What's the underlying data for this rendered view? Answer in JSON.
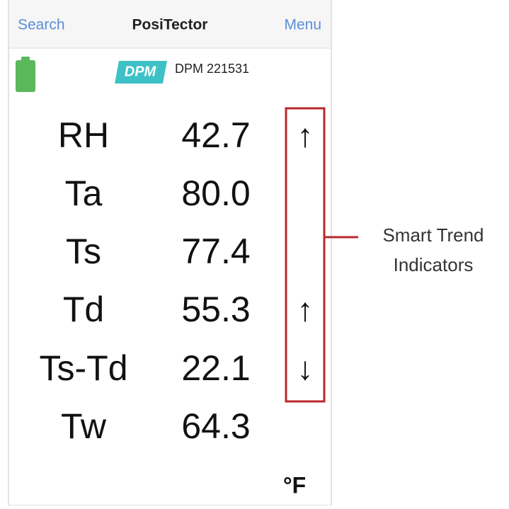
{
  "nav": {
    "left": "Search",
    "title": "PosiTector",
    "right": "Menu"
  },
  "device": {
    "logo": "DPM",
    "name": "DPM 221531"
  },
  "readings": [
    {
      "label": "RH",
      "value": "42.7",
      "trend": "↑"
    },
    {
      "label": "Ta",
      "value": "80.0"
    },
    {
      "label": "Ts",
      "value": "77.4"
    },
    {
      "label": "Td",
      "value": "55.3",
      "trend": "↑"
    },
    {
      "label": "Ts-Td",
      "value": "22.1",
      "trend": "↓"
    },
    {
      "label": "Tw",
      "value": "64.3"
    }
  ],
  "unit": "°F",
  "annotation": [
    "Smart Trend",
    "Indicators"
  ]
}
